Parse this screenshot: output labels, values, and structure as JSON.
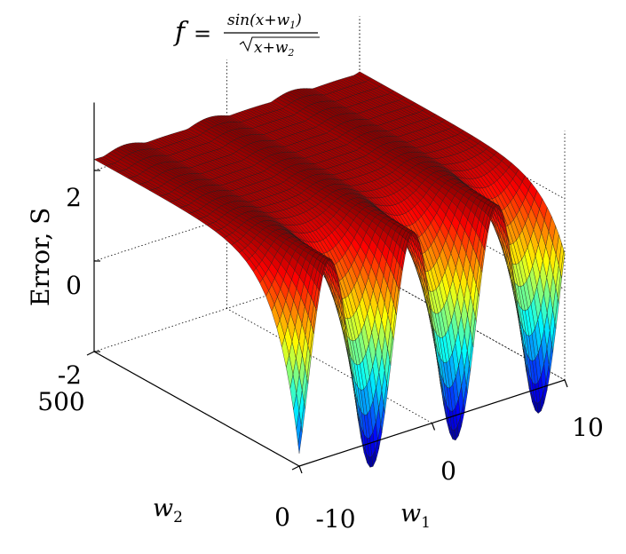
{
  "chart_data": {
    "type": "surface",
    "title": {
      "lhs": "f",
      "eq": "=",
      "numerator": "sin(x+w",
      "numerator_sub": "1",
      "numerator_close": ")",
      "denominator": "x+w",
      "denominator_sub": "2"
    },
    "zlabel": "Error, S",
    "xlabel": "w",
    "xlabel_sub": "1",
    "ylabel": "w",
    "ylabel_sub": "2",
    "x_ticks": [
      "-10",
      "0",
      "10"
    ],
    "y_ticks": [
      "0",
      "500"
    ],
    "z_ticks": [
      "-2",
      "0",
      "2"
    ],
    "xlim": [
      -10,
      10
    ],
    "ylim": [
      0,
      500
    ],
    "zlim": [
      -2,
      3.5
    ],
    "grid": true,
    "colormap": "jet",
    "surface": {
      "peaks_w1": [
        -7.7,
        -1.4,
        4.9
      ],
      "troughs_w1": [
        -4.6,
        1.7,
        8.0
      ],
      "max_error": 2.4,
      "min_error": -2.6,
      "error_far_w2": 2.3
    }
  }
}
